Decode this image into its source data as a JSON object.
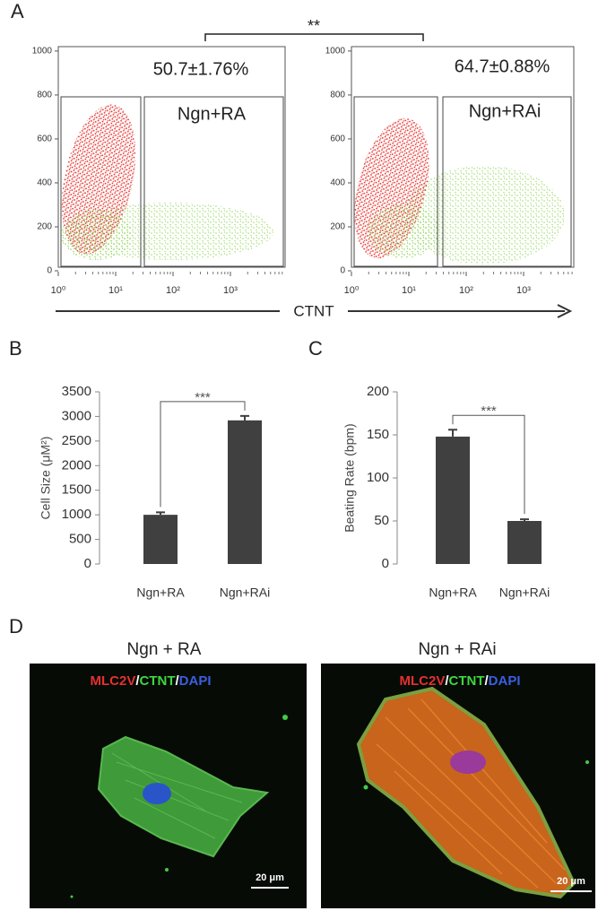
{
  "panel_labels": [
    "A",
    "B",
    "C",
    "D"
  ],
  "panel_a": {
    "xlabel": "CTNT",
    "significance": "**"
  },
  "chart_data": [
    {
      "type": "scatter",
      "xscale": "log",
      "annotations": [
        "50.7±1.76%",
        "Ngn+RA"
      ],
      "xlim": [
        1,
        10000
      ],
      "xticks": [
        {
          "value": 1,
          "label": "10⁰"
        },
        {
          "value": 10,
          "label": "10¹"
        },
        {
          "value": 100,
          "label": "10²"
        },
        {
          "value": 1000,
          "label": "10³"
        }
      ],
      "ylim": [
        0,
        1020
      ],
      "yticks": [
        0,
        200,
        400,
        600,
        800,
        1000
      ]
    },
    {
      "type": "scatter",
      "xscale": "log",
      "annotations": [
        "64.7±0.88%",
        "Ngn+RAi"
      ],
      "xlim": [
        1,
        10000
      ],
      "xticks": [
        {
          "value": 1,
          "label": "10⁰"
        },
        {
          "value": 10,
          "label": "10¹"
        },
        {
          "value": 100,
          "label": "10²"
        },
        {
          "value": 1000,
          "label": "10³"
        }
      ],
      "ylim": [
        0,
        1020
      ],
      "yticks": [
        0,
        200,
        400,
        600,
        800,
        1000
      ]
    },
    {
      "type": "bar",
      "ylabel": "Cell Size (μM²)",
      "categories": [
        "Ngn+RA",
        "Ngn+RAi"
      ],
      "values": [
        1000,
        2920
      ],
      "errors": [
        50,
        90
      ],
      "color": "#404040",
      "ylim": [
        0,
        3500
      ],
      "yticks": [
        0,
        500,
        1000,
        1500,
        2000,
        2500,
        3000,
        3500
      ],
      "annotation": "***"
    },
    {
      "type": "bar",
      "ylabel": "Beating Rate (bpm)",
      "categories": [
        "Ngn+RA",
        "Ngn+RAi"
      ],
      "values": [
        148,
        50
      ],
      "errors": [
        8,
        2
      ],
      "color": "#404040",
      "ylim": [
        0,
        200
      ],
      "yticks": [
        0,
        50,
        100,
        150,
        200
      ],
      "annotation": "***"
    }
  ],
  "images": [
    {
      "title": "Ngn + RA",
      "stain": [
        "MLC2V",
        "/",
        "CTNT",
        "/",
        "DAPI"
      ],
      "scale_bar": "20 μm"
    },
    {
      "title": "Ngn + RAi",
      "stain": [
        "MLC2V",
        "/",
        "CTNT",
        "/",
        "DAPI"
      ],
      "scale_bar": "20 μm"
    }
  ]
}
